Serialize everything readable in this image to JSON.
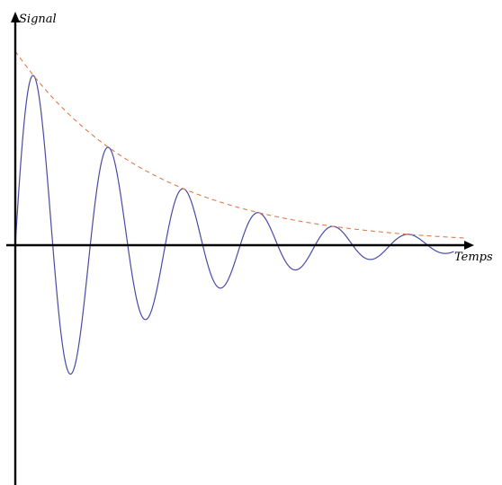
{
  "chart_data": {
    "type": "line",
    "title": "",
    "xlabel": "Temps",
    "ylabel": "Signal",
    "grid": false,
    "xlim": [
      0,
      6
    ],
    "ylim": [
      -3,
      3
    ],
    "series": [
      {
        "kind": "damped-oscillation",
        "color": "#4a4aa6",
        "style": "solid",
        "amplitude": 3,
        "decay_rate": 0.55,
        "period": 1,
        "x_end": 5.85
      },
      {
        "kind": "exponential-envelope",
        "color": "#e07a4a",
        "style": "dashed",
        "amplitude": 3,
        "decay_rate": 0.55,
        "x_end": 6
      }
    ]
  },
  "colors": {
    "axis": "#000000",
    "background": "#ffffff"
  }
}
